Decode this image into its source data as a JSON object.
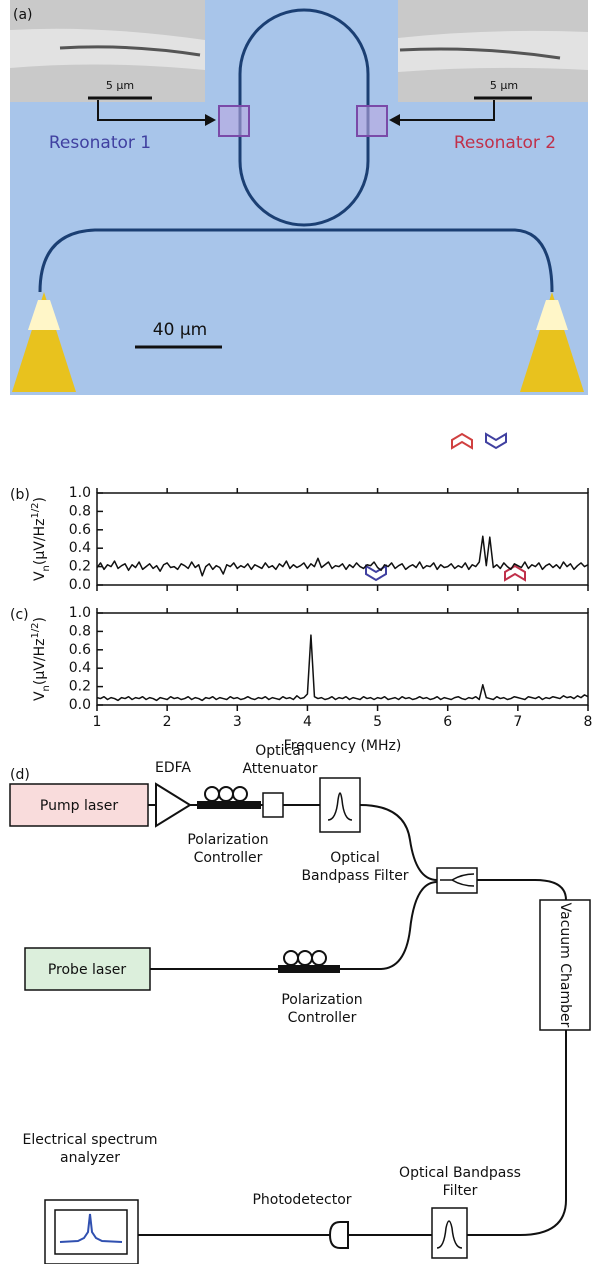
{
  "panel_a": {
    "label": "(a)",
    "inset_scale_left": "5 μm",
    "inset_scale_right": "5 μm",
    "resonator_1": "Resonator 1",
    "resonator_2": "Resonator 2",
    "scale_bar": "40 μm"
  },
  "chart_data": [
    {
      "type": "line",
      "panel_label": "(b)",
      "ylabel": [
        "V",
        "n",
        "(μV/Hz",
        "1/2",
        ")"
      ],
      "color": "#111111",
      "xlim": [
        1,
        8
      ],
      "xticks": [
        1,
        2,
        3,
        4,
        5,
        6,
        7,
        8
      ],
      "ylim": [
        0,
        1
      ],
      "yticks": [
        {
          "value": 0,
          "label": "0.0"
        },
        {
          "value": 0.2,
          "label": "0.2"
        },
        {
          "value": 0.4,
          "label": "0.4"
        },
        {
          "value": 0.6,
          "label": "0.6"
        },
        {
          "value": 0.8,
          "label": "0.8"
        },
        {
          "value": 1,
          "label": "1.0"
        }
      ],
      "x": [
        1,
        1.05,
        1.1,
        1.15,
        1.2,
        1.25,
        1.3,
        1.35,
        1.4,
        1.45,
        1.5,
        1.55,
        1.6,
        1.65,
        1.7,
        1.75,
        1.8,
        1.85,
        1.9,
        1.95,
        2,
        2.05,
        2.1,
        2.15,
        2.2,
        2.25,
        2.3,
        2.35,
        2.4,
        2.45,
        2.5,
        2.55,
        2.6,
        2.65,
        2.7,
        2.75,
        2.8,
        2.85,
        2.9,
        2.95,
        3,
        3.05,
        3.1,
        3.15,
        3.2,
        3.25,
        3.3,
        3.35,
        3.4,
        3.45,
        3.5,
        3.55,
        3.6,
        3.65,
        3.7,
        3.75,
        3.8,
        3.85,
        3.9,
        3.95,
        4,
        4.05,
        4.1,
        4.15,
        4.2,
        4.25,
        4.3,
        4.35,
        4.4,
        4.45,
        4.5,
        4.55,
        4.6,
        4.65,
        4.7,
        4.75,
        4.8,
        4.85,
        4.9,
        4.95,
        5,
        5.05,
        5.1,
        5.15,
        5.2,
        5.25,
        5.3,
        5.35,
        5.4,
        5.45,
        5.5,
        5.55,
        5.6,
        5.65,
        5.7,
        5.75,
        5.8,
        5.85,
        5.9,
        5.95,
        6,
        6.05,
        6.1,
        6.15,
        6.2,
        6.25,
        6.3,
        6.35,
        6.4,
        6.45,
        6.5,
        6.55,
        6.6,
        6.65,
        6.7,
        6.75,
        6.8,
        6.85,
        6.9,
        6.95,
        7,
        7.05,
        7.1,
        7.15,
        7.2,
        7.25,
        7.3,
        7.35,
        7.4,
        7.45,
        7.5,
        7.55,
        7.6,
        7.65,
        7.7,
        7.75,
        7.8,
        7.85,
        7.9,
        7.95,
        8
      ],
      "values": [
        0.19,
        0.24,
        0.17,
        0.22,
        0.2,
        0.26,
        0.18,
        0.21,
        0.23,
        0.16,
        0.22,
        0.19,
        0.25,
        0.17,
        0.2,
        0.23,
        0.18,
        0.21,
        0.15,
        0.22,
        0.24,
        0.19,
        0.2,
        0.17,
        0.23,
        0.21,
        0.18,
        0.25,
        0.19,
        0.22,
        0.1,
        0.2,
        0.23,
        0.17,
        0.21,
        0.19,
        0.12,
        0.22,
        0.2,
        0.24,
        0.18,
        0.21,
        0.19,
        0.23,
        0.17,
        0.22,
        0.2,
        0.18,
        0.24,
        0.19,
        0.21,
        0.17,
        0.23,
        0.2,
        0.26,
        0.18,
        0.22,
        0.19,
        0.21,
        0.24,
        0.18,
        0.23,
        0.2,
        0.29,
        0.19,
        0.22,
        0.25,
        0.18,
        0.21,
        0.2,
        0.23,
        0.17,
        0.22,
        0.19,
        0.24,
        0.2,
        0.18,
        0.22,
        0.21,
        0.25,
        0.19,
        0.16,
        0.22,
        0.2,
        0.24,
        0.18,
        0.21,
        0.23,
        0.17,
        0.2,
        0.22,
        0.19,
        0.25,
        0.18,
        0.21,
        0.2,
        0.24,
        0.17,
        0.22,
        0.19,
        0.2,
        0.23,
        0.18,
        0.21,
        0.19,
        0.24,
        0.17,
        0.22,
        0.2,
        0.25,
        0.53,
        0.21,
        0.52,
        0.19,
        0.22,
        0.18,
        0.24,
        0.2,
        0.17,
        0.23,
        0.21,
        0.19,
        0.25,
        0.18,
        0.22,
        0.2,
        0.24,
        0.17,
        0.21,
        0.23,
        0.19,
        0.22,
        0.18,
        0.25,
        0.2,
        0.23,
        0.17,
        0.21,
        0.24,
        0.2,
        0.22
      ]
    },
    {
      "type": "line",
      "panel_label": "(c)",
      "ylabel": [
        "V",
        "n",
        "(μV/Hz",
        "1/2",
        ")"
      ],
      "xlabel": "Frequency (MHz)",
      "color": "#111111",
      "xlim": [
        1,
        8
      ],
      "xticks": [
        1,
        2,
        3,
        4,
        5,
        6,
        7,
        8
      ],
      "ylim": [
        0,
        1
      ],
      "yticks": [
        {
          "value": 0,
          "label": "0.0"
        },
        {
          "value": 0.2,
          "label": "0.2"
        },
        {
          "value": 0.4,
          "label": "0.4"
        },
        {
          "value": 0.6,
          "label": "0.6"
        },
        {
          "value": 0.8,
          "label": "0.8"
        },
        {
          "value": 1,
          "label": "1.0"
        }
      ],
      "x": [
        1,
        1.05,
        1.1,
        1.15,
        1.2,
        1.25,
        1.3,
        1.35,
        1.4,
        1.45,
        1.5,
        1.55,
        1.6,
        1.65,
        1.7,
        1.75,
        1.8,
        1.85,
        1.9,
        1.95,
        2,
        2.05,
        2.1,
        2.15,
        2.2,
        2.25,
        2.3,
        2.35,
        2.4,
        2.45,
        2.5,
        2.55,
        2.6,
        2.65,
        2.7,
        2.75,
        2.8,
        2.85,
        2.9,
        2.95,
        3,
        3.05,
        3.1,
        3.15,
        3.2,
        3.25,
        3.3,
        3.35,
        3.4,
        3.45,
        3.5,
        3.55,
        3.6,
        3.65,
        3.7,
        3.75,
        3.8,
        3.85,
        3.9,
        3.95,
        4,
        4.05,
        4.1,
        4.15,
        4.2,
        4.25,
        4.3,
        4.35,
        4.4,
        4.45,
        4.5,
        4.55,
        4.6,
        4.65,
        4.7,
        4.75,
        4.8,
        4.85,
        4.9,
        4.95,
        5,
        5.05,
        5.1,
        5.15,
        5.2,
        5.25,
        5.3,
        5.35,
        5.4,
        5.45,
        5.5,
        5.55,
        5.6,
        5.65,
        5.7,
        5.75,
        5.8,
        5.85,
        5.9,
        5.95,
        6,
        6.05,
        6.1,
        6.15,
        6.2,
        6.25,
        6.3,
        6.35,
        6.4,
        6.45,
        6.5,
        6.55,
        6.6,
        6.65,
        6.7,
        6.75,
        6.8,
        6.85,
        6.9,
        6.95,
        7,
        7.05,
        7.1,
        7.15,
        7.2,
        7.25,
        7.3,
        7.35,
        7.4,
        7.45,
        7.5,
        7.55,
        7.6,
        7.65,
        7.7,
        7.75,
        7.8,
        7.85,
        7.9,
        7.95,
        8
      ],
      "values": [
        0.08,
        0.07,
        0.09,
        0.06,
        0.08,
        0.07,
        0.05,
        0.08,
        0.07,
        0.09,
        0.06,
        0.08,
        0.07,
        0.09,
        0.06,
        0.08,
        0.07,
        0.05,
        0.08,
        0.07,
        0.06,
        0.09,
        0.07,
        0.08,
        0.06,
        0.07,
        0.09,
        0.06,
        0.08,
        0.07,
        0.05,
        0.08,
        0.07,
        0.09,
        0.06,
        0.08,
        0.07,
        0.06,
        0.09,
        0.07,
        0.08,
        0.06,
        0.07,
        0.09,
        0.07,
        0.06,
        0.08,
        0.07,
        0.09,
        0.06,
        0.08,
        0.07,
        0.06,
        0.09,
        0.07,
        0.08,
        0.06,
        0.1,
        0.07,
        0.08,
        0.12,
        0.76,
        0.09,
        0.07,
        0.08,
        0.06,
        0.07,
        0.09,
        0.06,
        0.08,
        0.07,
        0.09,
        0.06,
        0.08,
        0.07,
        0.06,
        0.09,
        0.07,
        0.08,
        0.06,
        0.08,
        0.07,
        0.09,
        0.06,
        0.07,
        0.08,
        0.06,
        0.09,
        0.07,
        0.08,
        0.06,
        0.07,
        0.09,
        0.07,
        0.08,
        0.06,
        0.07,
        0.09,
        0.06,
        0.08,
        0.07,
        0.06,
        0.08,
        0.09,
        0.07,
        0.06,
        0.08,
        0.07,
        0.09,
        0.06,
        0.22,
        0.08,
        0.07,
        0.06,
        0.09,
        0.07,
        0.08,
        0.06,
        0.07,
        0.09,
        0.08,
        0.07,
        0.06,
        0.09,
        0.08,
        0.07,
        0.09,
        0.06,
        0.08,
        0.07,
        0.09,
        0.08,
        0.07,
        0.1,
        0.08,
        0.09,
        0.07,
        0.1,
        0.08,
        0.11,
        0.09
      ]
    }
  ],
  "panel_d": {
    "label": "(d)",
    "edfa": "EDFA",
    "attenuator": [
      "Optical",
      "Attenuator"
    ],
    "pump_laser": "Pump laser",
    "pump_controller": [
      "Polarization",
      "Controller"
    ],
    "filter_1": [
      "Optical",
      "Bandpass Filter"
    ],
    "probe_laser": "Probe laser",
    "probe_controller": [
      "Polarization",
      "Controller"
    ],
    "vacuum_chamber": "Vacuum Chamber",
    "analyzer": [
      "Electrical spectrum",
      "analyzer"
    ],
    "photodetector": "Photodetector",
    "filter_2": [
      "Optical Bandpass",
      "Filter"
    ]
  }
}
